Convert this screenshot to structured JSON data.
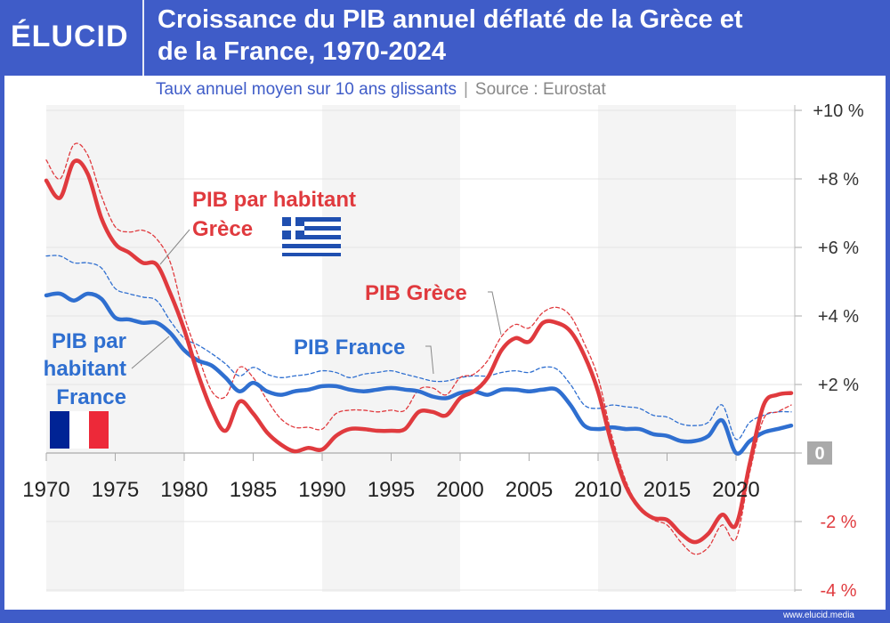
{
  "header": {
    "logo": "ÉLUCID",
    "title_line1": "Croissance du PIB annuel déflaté de la Grèce et",
    "title_line2": "de la France, 1970-2024"
  },
  "subtitle": {
    "text": "Taux annuel moyen sur 10 ans glissants",
    "separator": "|",
    "source": "Source : Eurostat"
  },
  "footer": {
    "url": "www.elucid.media"
  },
  "colors": {
    "brand": "#3f5cc8",
    "greece": "#e03a3e",
    "france": "#2f6fd0",
    "band": "#f4f4f4"
  },
  "annotations": {
    "gr_pc_1": "PIB par habitant",
    "gr_pc_2": "Grèce",
    "gr_gdp": "PIB Grèce",
    "fr_gdp": "PIB France",
    "fr_pc_1": "PIB par",
    "fr_pc_2": "habitant",
    "fr_pc_3": "France"
  },
  "chart_data": {
    "type": "line",
    "title": "Croissance du PIB annuel déflaté de la Grèce et de la France, 1970-2024",
    "subtitle": "Taux annuel moyen sur 10 ans glissants",
    "xlim": [
      1970,
      2024
    ],
    "ylim": [
      -4,
      10
    ],
    "x_ticks": [
      1970,
      1975,
      1980,
      1985,
      1990,
      1995,
      2000,
      2005,
      2010,
      2015,
      2020
    ],
    "x_tick_labels": [
      "1970",
      "1975",
      "1980",
      "1985",
      "1990",
      "1995",
      "2000",
      "2005",
      "2010",
      "2015",
      "2020"
    ],
    "y_ticks": [
      -4,
      -2,
      0,
      2,
      4,
      6,
      8,
      10
    ],
    "y_tick_labels": [
      "-4 %",
      "-2 %",
      "0",
      "+2 %",
      "+4 %",
      "+6 %",
      "+8 %",
      "+10 %"
    ],
    "y_axis_position": "right",
    "grid": true,
    "years_start": 1970,
    "series": [
      {
        "name": "PIB par habitant Grèce",
        "style": "solid",
        "color": "#e03a3e",
        "values": [
          7.95,
          7.45,
          8.5,
          8.15,
          6.85,
          6.1,
          5.85,
          5.55,
          5.5,
          4.65,
          3.6,
          2.3,
          1.25,
          0.65,
          1.5,
          1.15,
          0.6,
          0.25,
          0.05,
          0.15,
          0.1,
          0.5,
          0.7,
          0.7,
          0.65,
          0.65,
          0.7,
          1.2,
          1.2,
          1.1,
          1.6,
          1.8,
          2.2,
          3.0,
          3.35,
          3.25,
          3.8,
          3.8,
          3.55,
          2.85,
          1.8,
          0.25,
          -0.95,
          -1.6,
          -1.9,
          -1.95,
          -2.35,
          -2.6,
          -2.35,
          -1.8,
          -2.1,
          -0.3,
          1.4,
          1.7,
          1.75
        ]
      },
      {
        "name": "PIB Grèce",
        "style": "dashed",
        "color": "#e03a3e",
        "values": [
          8.55,
          8.0,
          9.0,
          8.7,
          7.5,
          6.6,
          6.45,
          6.5,
          6.25,
          5.55,
          4.0,
          2.85,
          1.8,
          1.65,
          2.5,
          2.2,
          1.55,
          1.0,
          0.75,
          0.75,
          0.7,
          1.15,
          1.25,
          1.25,
          1.2,
          1.25,
          1.25,
          1.85,
          1.9,
          1.7,
          2.2,
          2.3,
          2.7,
          3.4,
          3.75,
          3.65,
          4.1,
          4.25,
          4.0,
          3.2,
          2.2,
          0.5,
          -0.8,
          -1.6,
          -1.95,
          -2.1,
          -2.6,
          -2.95,
          -2.75,
          -2.1,
          -2.5,
          -0.55,
          1.0,
          1.2,
          1.4
        ]
      },
      {
        "name": "PIB par habitant France",
        "style": "solid",
        "color": "#2f6fd0",
        "values": [
          4.6,
          4.65,
          4.45,
          4.65,
          4.5,
          3.95,
          3.9,
          3.8,
          3.8,
          3.5,
          3.0,
          2.7,
          2.55,
          2.2,
          1.8,
          2.05,
          1.8,
          1.7,
          1.8,
          1.85,
          1.95,
          1.95,
          1.85,
          1.8,
          1.85,
          1.9,
          1.85,
          1.8,
          1.65,
          1.6,
          1.75,
          1.8,
          1.7,
          1.85,
          1.85,
          1.8,
          1.85,
          1.85,
          1.4,
          0.8,
          0.7,
          0.75,
          0.7,
          0.7,
          0.55,
          0.5,
          0.35,
          0.35,
          0.5,
          0.95,
          0.0,
          0.35,
          0.6,
          0.7,
          0.8
        ]
      },
      {
        "name": "PIB France",
        "style": "dashed",
        "color": "#2f6fd0",
        "values": [
          5.75,
          5.75,
          5.55,
          5.55,
          5.4,
          4.8,
          4.65,
          4.55,
          4.45,
          3.85,
          3.35,
          3.15,
          2.9,
          2.6,
          2.25,
          2.5,
          2.3,
          2.2,
          2.25,
          2.3,
          2.4,
          2.35,
          2.2,
          2.3,
          2.35,
          2.4,
          2.3,
          2.2,
          2.1,
          2.1,
          2.2,
          2.25,
          2.25,
          2.35,
          2.4,
          2.35,
          2.5,
          2.45,
          2.0,
          1.4,
          1.3,
          1.4,
          1.35,
          1.3,
          1.1,
          1.05,
          0.85,
          0.8,
          0.9,
          1.4,
          0.4,
          0.9,
          1.1,
          1.2,
          1.2
        ]
      }
    ]
  }
}
